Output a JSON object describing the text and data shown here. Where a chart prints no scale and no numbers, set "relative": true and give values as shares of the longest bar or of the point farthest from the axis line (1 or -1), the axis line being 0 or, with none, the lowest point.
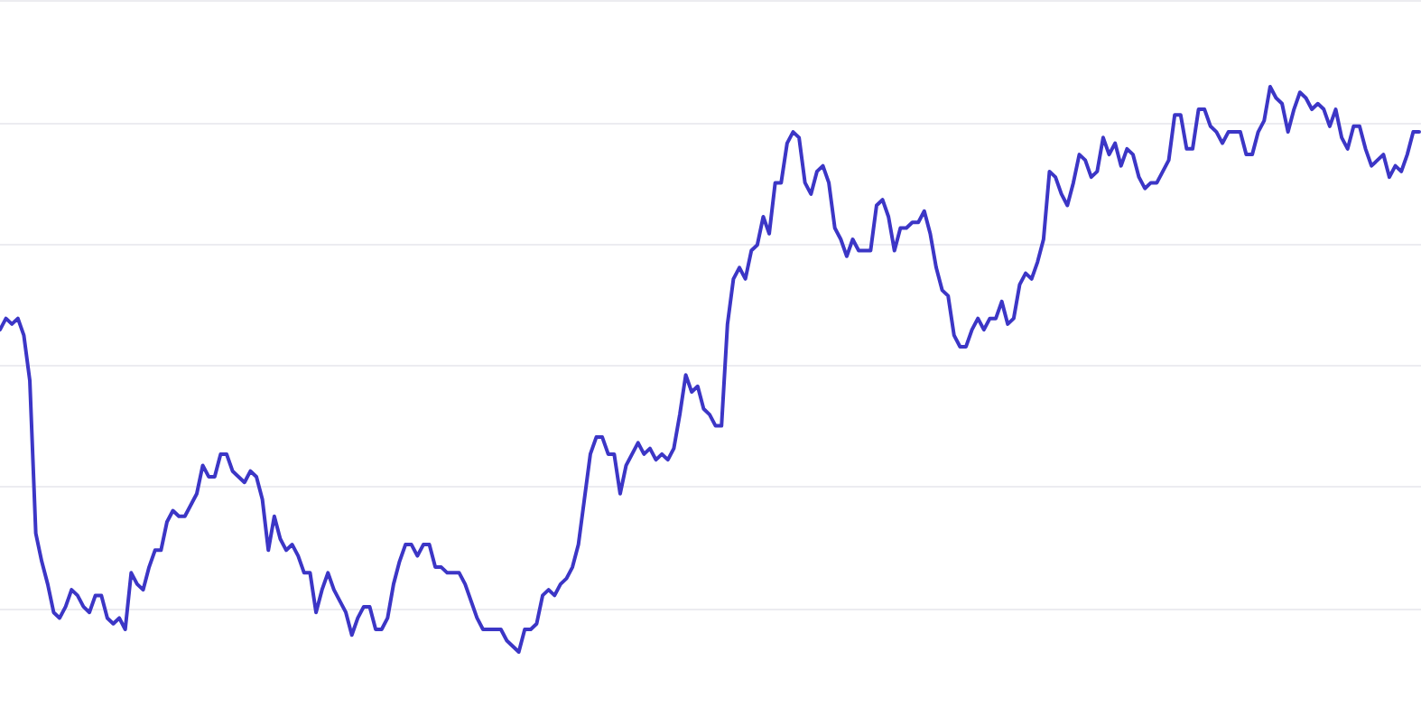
{
  "chart_data": {
    "type": "line",
    "relative": true,
    "grid": "y",
    "line_style": "solid",
    "color": "#3c36c6",
    "categories": [
      null,
      null,
      null,
      null,
      null,
      null,
      null,
      null,
      null,
      null,
      null,
      null,
      null,
      null,
      null,
      null,
      null,
      null,
      null,
      null,
      null,
      null,
      null,
      null,
      null,
      null,
      null,
      null,
      null,
      null,
      null,
      null,
      null,
      null,
      null,
      null,
      null,
      null,
      null,
      null,
      null,
      null,
      null,
      null,
      null,
      null,
      null,
      null,
      null,
      null,
      null,
      null,
      null,
      null,
      null,
      null,
      null,
      null,
      null,
      null,
      null,
      null,
      null,
      null,
      null,
      null,
      null,
      null,
      null,
      null,
      null,
      null,
      null,
      null,
      null,
      null,
      null,
      null,
      null,
      null,
      null,
      null,
      null,
      null,
      null,
      null,
      null,
      null,
      null,
      null,
      null,
      null,
      null,
      null,
      null,
      null,
      null,
      null,
      null,
      null,
      null,
      null,
      null,
      null,
      null,
      null,
      null,
      null,
      null,
      null,
      null,
      null,
      null,
      null,
      null,
      null,
      null,
      null,
      null,
      null,
      null,
      null,
      null,
      null,
      null,
      null,
      null,
      null,
      null,
      null,
      null,
      null,
      null,
      null,
      null,
      null,
      null,
      null,
      null,
      null,
      null,
      null,
      null,
      null,
      null,
      null,
      null,
      null,
      null,
      null,
      null,
      null,
      null,
      null,
      null,
      null,
      null,
      null,
      null,
      null,
      null,
      null,
      null,
      null,
      null,
      null,
      null,
      null,
      null,
      null,
      null,
      null,
      null,
      null,
      null,
      null,
      null,
      null,
      null,
      null,
      null,
      null,
      null,
      null,
      null,
      null,
      null,
      null,
      null,
      null,
      null,
      null,
      null,
      null,
      null,
      null,
      null,
      null,
      null,
      null,
      null,
      null,
      null,
      null,
      null,
      null,
      null,
      null,
      null,
      null,
      null,
      null,
      null,
      null,
      null,
      null,
      null,
      null,
      null,
      null,
      null,
      null,
      null,
      null,
      null,
      null,
      null,
      null,
      null,
      null,
      null,
      null,
      null,
      null,
      null,
      null,
      null,
      null,
      null
    ],
    "values": [
      0.57,
      0.59,
      0.58,
      0.59,
      0.56,
      0.48,
      0.21,
      0.16,
      0.12,
      0.07,
      0.06,
      0.08,
      0.11,
      0.1,
      0.08,
      0.07,
      0.1,
      0.1,
      0.06,
      0.05,
      0.06,
      0.04,
      0.14,
      0.12,
      0.11,
      0.15,
      0.18,
      0.18,
      0.23,
      0.25,
      0.24,
      0.24,
      0.26,
      0.28,
      0.33,
      0.31,
      0.31,
      0.35,
      0.35,
      0.32,
      0.31,
      0.3,
      0.32,
      0.31,
      0.27,
      0.18,
      0.24,
      0.2,
      0.18,
      0.19,
      0.17,
      0.14,
      0.14,
      0.07,
      0.11,
      0.14,
      0.11,
      0.09,
      0.07,
      0.03,
      0.06,
      0.08,
      0.08,
      0.04,
      0.04,
      0.06,
      0.12,
      0.16,
      0.19,
      0.19,
      0.17,
      0.19,
      0.19,
      0.15,
      0.15,
      0.14,
      0.14,
      0.14,
      0.12,
      0.09,
      0.06,
      0.04,
      0.04,
      0.04,
      0.04,
      0.02,
      0.01,
      0,
      0.04,
      0.04,
      0.05,
      0.1,
      0.11,
      0.1,
      0.12,
      0.13,
      0.15,
      0.19,
      0.27,
      0.35,
      0.38,
      0.38,
      0.35,
      0.35,
      0.28,
      0.33,
      0.35,
      0.37,
      0.35,
      0.36,
      0.34,
      0.35,
      0.34,
      0.36,
      0.42,
      0.49,
      0.46,
      0.47,
      0.43,
      0.42,
      0.4,
      0.4,
      0.58,
      0.66,
      0.68,
      0.66,
      0.71,
      0.72,
      0.77,
      0.74,
      0.83,
      0.83,
      0.9,
      0.92,
      0.91,
      0.83,
      0.81,
      0.85,
      0.86,
      0.83,
      0.75,
      0.73,
      0.7,
      0.73,
      0.71,
      0.71,
      0.71,
      0.79,
      0.8,
      0.77,
      0.71,
      0.75,
      0.75,
      0.76,
      0.76,
      0.78,
      0.74,
      0.68,
      0.64,
      0.63,
      0.56,
      0.54,
      0.54,
      0.57,
      0.59,
      0.57,
      0.59,
      0.59,
      0.62,
      0.58,
      0.59,
      0.65,
      0.67,
      0.66,
      0.69,
      0.73,
      0.85,
      0.84,
      0.81,
      0.79,
      0.83,
      0.88,
      0.87,
      0.84,
      0.85,
      0.91,
      0.88,
      0.9,
      0.86,
      0.89,
      0.88,
      0.84,
      0.82,
      0.83,
      0.83,
      0.85,
      0.87,
      0.95,
      0.95,
      0.89,
      0.89,
      0.96,
      0.96,
      0.93,
      0.92,
      0.9,
      0.92,
      0.92,
      0.92,
      0.88,
      0.88,
      0.92,
      0.94,
      1,
      0.98,
      0.97,
      0.92,
      0.96,
      0.99,
      0.98,
      0.96,
      0.97,
      0.96,
      0.93,
      0.96,
      0.91,
      0.89,
      0.93,
      0.93,
      0.89,
      0.86,
      0.87,
      0.88,
      0.84,
      0.86,
      0.85,
      0.88,
      0.92,
      0.92
    ]
  }
}
